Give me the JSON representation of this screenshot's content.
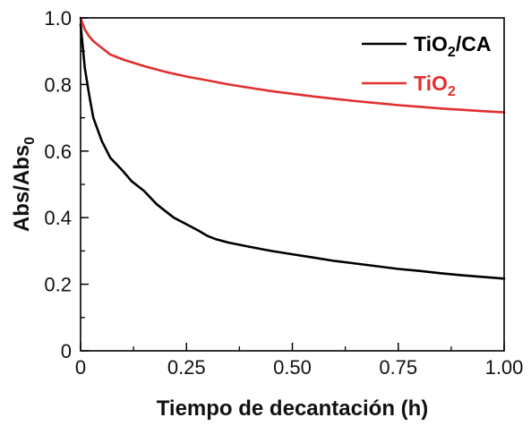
{
  "chart_data": {
    "type": "line",
    "xlabel": "Tiempo de decantación (h)",
    "ylabel": {
      "main": "Abs/Abs",
      "sub": "0"
    },
    "xlim": [
      0,
      1.0
    ],
    "ylim": [
      0,
      1.0
    ],
    "x_ticks": [
      "0",
      "0.25",
      "0.50",
      "0.75",
      "1.00"
    ],
    "y_ticks": [
      "0",
      "0.2",
      "0.4",
      "0.6",
      "0.8",
      "1.0"
    ],
    "grid": false,
    "legend_position": "top-right",
    "series": [
      {
        "name": {
          "main": "TiO",
          "sub": "2",
          "suffix": "/CA"
        },
        "color": "#000000",
        "x": [
          0,
          0.01,
          0.02,
          0.03,
          0.05,
          0.07,
          0.1,
          0.12,
          0.15,
          0.18,
          0.2,
          0.22,
          0.25,
          0.28,
          0.3,
          0.32,
          0.35,
          0.4,
          0.45,
          0.5,
          0.55,
          0.6,
          0.65,
          0.7,
          0.75,
          0.8,
          0.85,
          0.9,
          0.95,
          1.0
        ],
        "y": [
          0.98,
          0.85,
          0.77,
          0.7,
          0.63,
          0.58,
          0.54,
          0.51,
          0.48,
          0.44,
          0.42,
          0.4,
          0.38,
          0.36,
          0.345,
          0.335,
          0.325,
          0.312,
          0.3,
          0.29,
          0.28,
          0.27,
          0.262,
          0.254,
          0.246,
          0.24,
          0.233,
          0.227,
          0.222,
          0.217
        ]
      },
      {
        "name": {
          "main": "TiO",
          "sub": "2",
          "suffix": ""
        },
        "color": "#e03030",
        "x": [
          0,
          0.01,
          0.02,
          0.03,
          0.05,
          0.07,
          0.1,
          0.15,
          0.2,
          0.25,
          0.3,
          0.35,
          0.4,
          0.45,
          0.5,
          0.55,
          0.6,
          0.65,
          0.7,
          0.75,
          0.8,
          0.85,
          0.9,
          0.95,
          1.0
        ],
        "y": [
          1.0,
          0.965,
          0.945,
          0.93,
          0.91,
          0.89,
          0.875,
          0.855,
          0.838,
          0.824,
          0.812,
          0.8,
          0.79,
          0.78,
          0.772,
          0.764,
          0.757,
          0.75,
          0.744,
          0.738,
          0.733,
          0.728,
          0.724,
          0.72,
          0.716
        ]
      }
    ]
  }
}
